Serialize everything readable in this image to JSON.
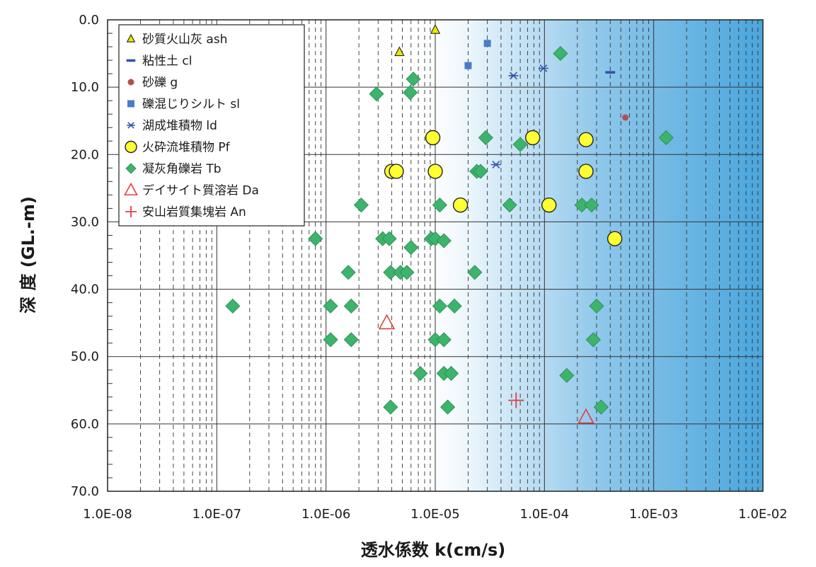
{
  "chart_data": {
    "type": "scatter",
    "xlabel": "透水係数 k(cm/s)",
    "ylabel": "深 度 (GL.-m)",
    "x_scale": "log",
    "xlim": [
      1e-08,
      0.01
    ],
    "ylim": [
      0,
      70
    ],
    "y_inverted": true,
    "x_tick_labels": [
      "1.0E-08",
      "1.0E-07",
      "1.0E-06",
      "1.0E-05",
      "1.0E-04",
      "1.0E-03",
      "1.0E-02"
    ],
    "y_tick_labels": [
      "0.0",
      "10.0",
      "20.0",
      "30.0",
      "40.0",
      "50.0",
      "60.0",
      "70.0"
    ],
    "grid": true,
    "legend_position": "top-left",
    "background": "blue gradient shading toward high permeability (right side)",
    "series": [
      {
        "name": "砂質火山灰 ash",
        "marker": "triangle",
        "color": "#e8e800",
        "points": [
          [
            1e-05,
            1.5
          ],
          [
            4.7e-06,
            4.8
          ]
        ]
      },
      {
        "name": "粘性土 cl",
        "marker": "dash",
        "color": "#3355aa",
        "points": [
          [
            0.0004,
            7.8
          ]
        ]
      },
      {
        "name": "砂礫 g",
        "marker": "circle-small",
        "color": "#b05050",
        "points": [
          [
            0.00055,
            14.5
          ]
        ]
      },
      {
        "name": "礫混じりシルト sl",
        "marker": "square",
        "color": "#4a7cc8",
        "points": [
          [
            3e-05,
            3.5
          ],
          [
            2e-05,
            6.8
          ]
        ]
      },
      {
        "name": "湖成堆積物 ld",
        "marker": "asterisk",
        "color": "#3355aa",
        "points": [
          [
            5.2e-05,
            8.3
          ],
          [
            9.8e-05,
            7.2
          ],
          [
            3.6e-05,
            21.5
          ]
        ]
      },
      {
        "name": "火砕流堆積物 Pf",
        "marker": "circle",
        "color": "#ffff33",
        "points": [
          [
            9.5e-06,
            17.5
          ],
          [
            7.8e-05,
            17.5
          ],
          [
            0.00024,
            17.8
          ],
          [
            4e-06,
            22.5
          ],
          [
            4.4e-06,
            22.5
          ],
          [
            1e-05,
            22.5
          ],
          [
            0.00024,
            22.5
          ],
          [
            1.7e-05,
            27.5
          ],
          [
            0.00011,
            27.5
          ],
          [
            0.00044,
            32.5
          ]
        ]
      },
      {
        "name": "凝灰角礫岩 Tb",
        "marker": "diamond",
        "color": "#3db36b",
        "points": [
          [
            0.00014,
            5.0
          ],
          [
            6.3e-06,
            8.8
          ],
          [
            2.9e-06,
            11.0
          ],
          [
            5.9e-06,
            10.8
          ],
          [
            2.9e-05,
            17.5
          ],
          [
            6e-05,
            18.5
          ],
          [
            0.0013,
            17.5
          ],
          [
            2.4e-05,
            22.5
          ],
          [
            2.6e-05,
            22.5
          ],
          [
            2.1e-06,
            27.5
          ],
          [
            1.1e-05,
            27.5
          ],
          [
            4.8e-05,
            27.5
          ],
          [
            0.00022,
            27.5
          ],
          [
            0.00027,
            27.5
          ],
          [
            8e-07,
            32.5
          ],
          [
            3.3e-06,
            32.5
          ],
          [
            3.8e-06,
            32.5
          ],
          [
            9.2e-06,
            32.5
          ],
          [
            1e-05,
            32.5
          ],
          [
            1.2e-05,
            32.8
          ],
          [
            6e-06,
            33.8
          ],
          [
            1.6e-06,
            37.5
          ],
          [
            3.9e-06,
            37.5
          ],
          [
            4.8e-06,
            37.5
          ],
          [
            5.5e-06,
            37.5
          ],
          [
            2.3e-05,
            37.5
          ],
          [
            1.4e-07,
            42.5
          ],
          [
            1.1e-06,
            42.5
          ],
          [
            1.7e-06,
            42.5
          ],
          [
            1.1e-05,
            42.5
          ],
          [
            1.5e-05,
            42.5
          ],
          [
            0.0003,
            42.5
          ],
          [
            1.1e-06,
            47.5
          ],
          [
            1.7e-06,
            47.5
          ],
          [
            1e-05,
            47.5
          ],
          [
            1.2e-05,
            47.5
          ],
          [
            0.00028,
            47.5
          ],
          [
            7.3e-06,
            52.5
          ],
          [
            1.2e-05,
            52.5
          ],
          [
            1.4e-05,
            52.5
          ],
          [
            0.00016,
            52.8
          ],
          [
            3.9e-06,
            57.5
          ],
          [
            1.3e-05,
            57.5
          ],
          [
            0.00033,
            57.5
          ]
        ]
      },
      {
        "name": "デイサイト質溶岩 Da",
        "marker": "triangle-open",
        "color": "#e04040",
        "points": [
          [
            3.6e-06,
            45.0
          ],
          [
            0.00024,
            59.0
          ]
        ]
      },
      {
        "name": "安山岩質集塊岩 An",
        "marker": "plus",
        "color": "#e04040",
        "points": [
          [
            5.5e-05,
            56.5
          ]
        ]
      }
    ]
  }
}
